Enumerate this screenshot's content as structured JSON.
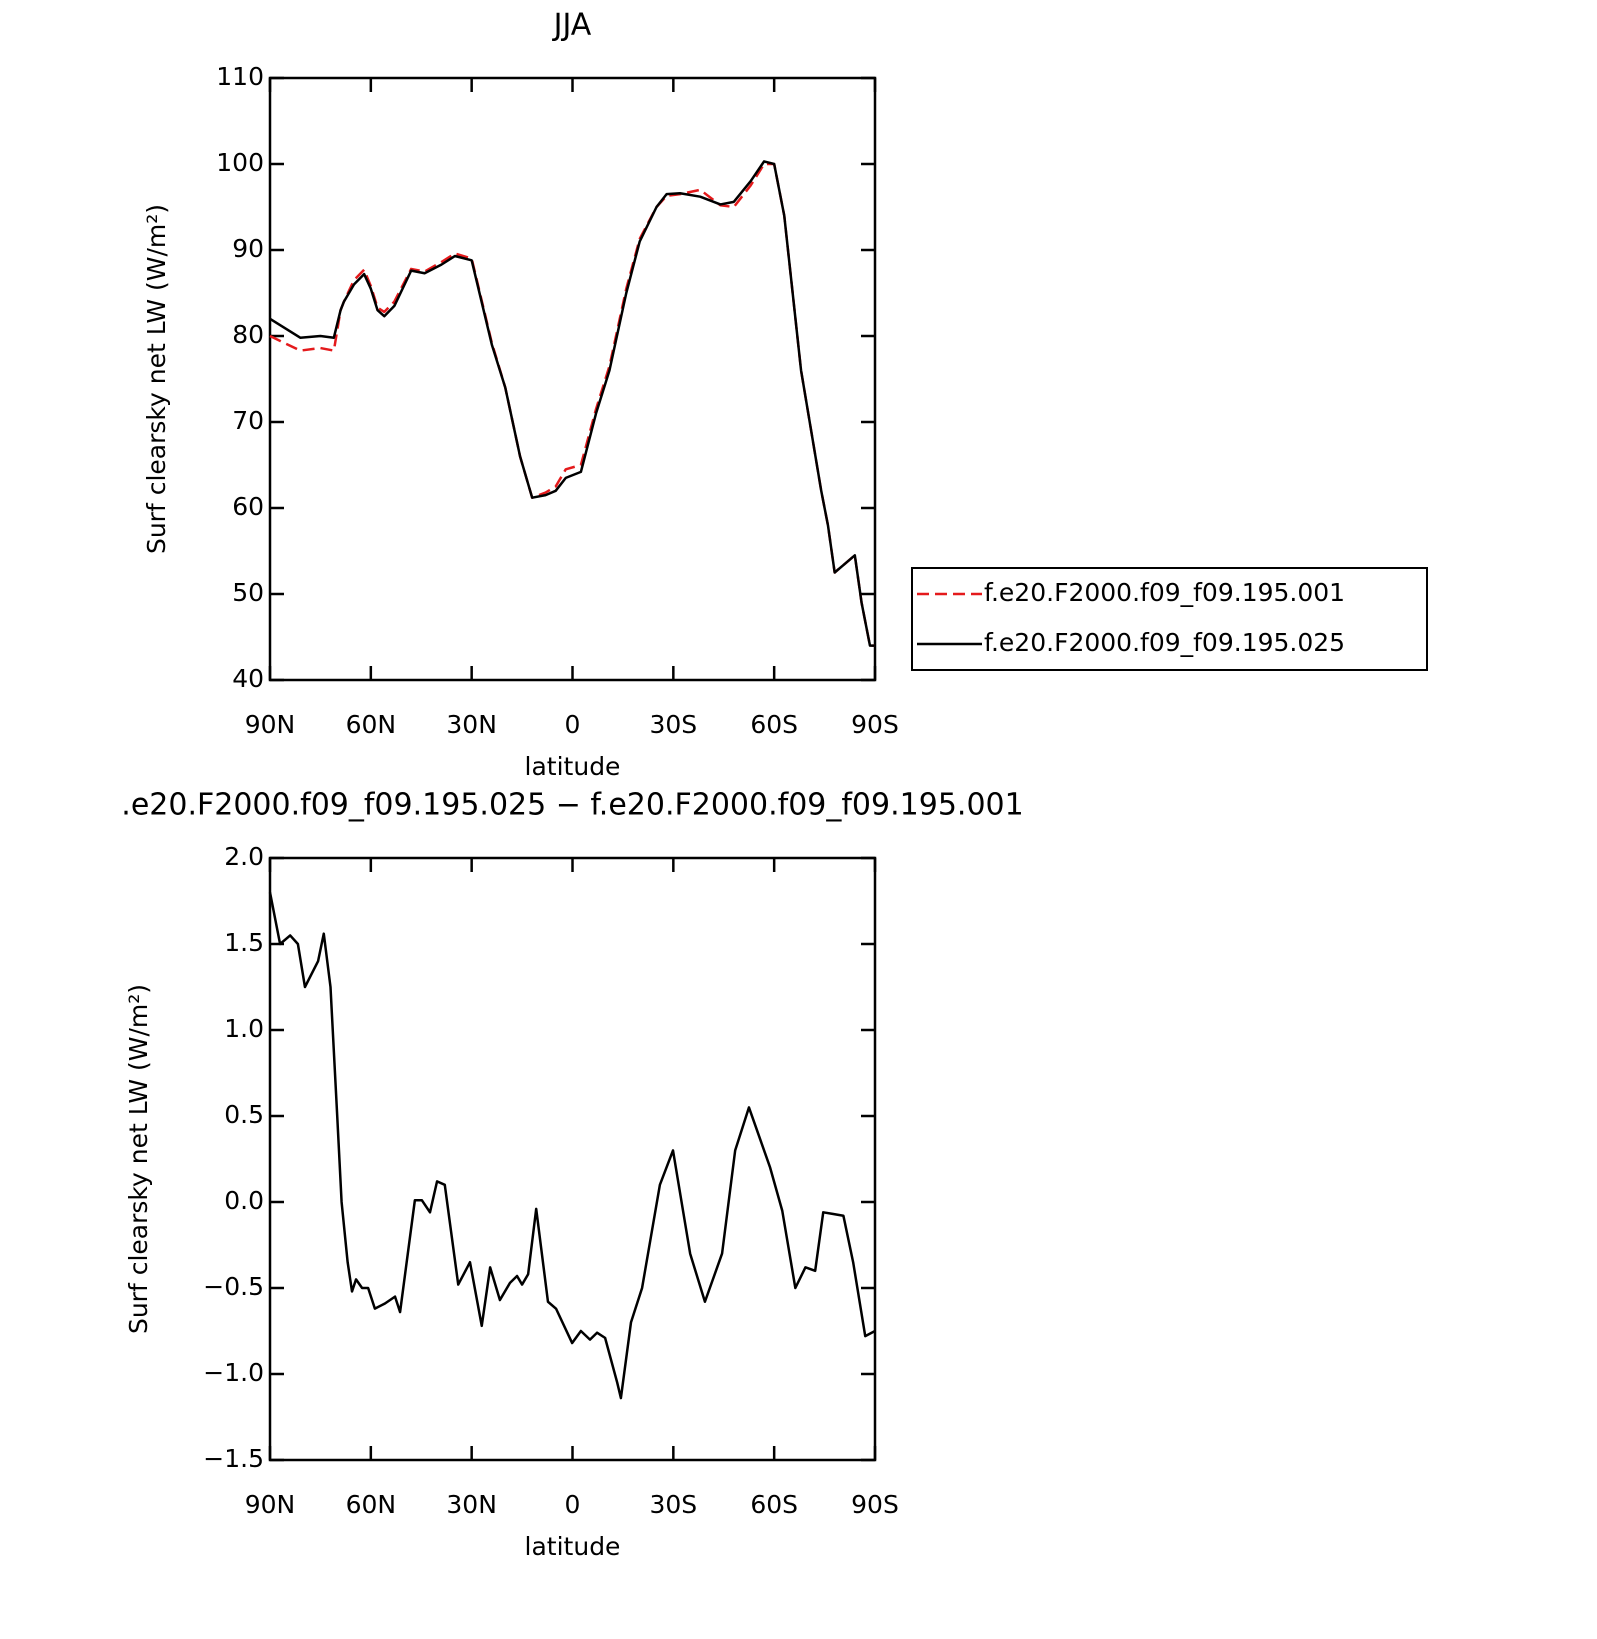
{
  "chart_data": [
    {
      "type": "line",
      "title": "JJA",
      "x_label": "latitude",
      "y_label": "Surf clearsky net LW (W/m²)",
      "x": [
        90,
        81,
        75,
        71,
        69,
        68,
        65,
        62,
        60,
        58,
        56,
        53,
        48,
        44,
        39,
        35,
        30,
        24,
        20,
        15.6,
        12,
        8,
        5,
        2,
        -2.5,
        -7,
        -11,
        -16,
        -20,
        -25,
        -28,
        -32,
        -38,
        -44,
        -48,
        -53,
        -57,
        -60,
        -63,
        -68,
        -71,
        -74,
        -76,
        -78,
        -81,
        -84,
        -86,
        -88.5,
        -90
      ],
      "series": [
        {
          "name": "f.e20.F2000.f09_f09.195.001",
          "color": "#e41a1c",
          "dashed": true,
          "values": [
            80,
            78.3,
            78.6,
            78.3,
            83,
            84,
            86.5,
            87.7,
            85.8,
            83.3,
            82.8,
            84,
            87.8,
            87.5,
            88.6,
            89.6,
            89,
            79.2,
            74,
            66,
            61.2,
            61.8,
            62.5,
            64.5,
            65,
            71.5,
            76.5,
            85.5,
            91.3,
            95,
            96.3,
            96.5,
            97,
            95.2,
            95,
            97.5,
            100,
            100,
            94,
            76,
            69,
            62,
            58,
            52.5,
            53.5,
            54.5,
            49,
            44,
            44
          ]
        },
        {
          "name": "f.e20.F2000.f09_f09.195.025",
          "color": "#000000",
          "dashed": false,
          "values": [
            82,
            79.8,
            80,
            79.8,
            83,
            84,
            86,
            87.2,
            85.5,
            83,
            82.3,
            83.5,
            87.6,
            87.3,
            88.3,
            89.3,
            88.8,
            79,
            74,
            66,
            61.2,
            61.5,
            62,
            63.5,
            64.2,
            71,
            76,
            85,
            91,
            95,
            96.5,
            96.6,
            96.2,
            95.3,
            95.6,
            98,
            100.3,
            100,
            94,
            76,
            69,
            62,
            58,
            52.5,
            53.5,
            54.5,
            49,
            44,
            44
          ]
        }
      ],
      "xlim": [
        90,
        -90
      ],
      "xticks": [
        {
          "value": 90,
          "label": "90N"
        },
        {
          "value": 60,
          "label": "60N"
        },
        {
          "value": 30,
          "label": "30N"
        },
        0,
        {
          "value": -30,
          "label": "30S"
        },
        {
          "value": -60,
          "label": "60S"
        },
        {
          "value": -90,
          "label": "90S"
        }
      ],
      "ylim": [
        40,
        110
      ],
      "yticks": [
        40,
        50,
        60,
        70,
        80,
        90,
        100,
        110
      ],
      "legend": "outside-right"
    },
    {
      "type": "line",
      "title": ".e20.F2000.f09_f09.195.025 − f.e20.F2000.f09_f09.195.001",
      "x_label": "latitude",
      "y_label": "Surf clearsky net LW (W/m²)",
      "x": [
        90,
        87,
        84,
        81.7,
        79.6,
        75.7,
        74,
        72,
        70,
        68.7,
        66.9,
        65.6,
        64.4,
        62.6,
        60.8,
        58.8,
        55.8,
        52.8,
        51.3,
        49,
        46.9,
        44.8,
        42.4,
        40.3,
        38,
        34,
        30.5,
        27,
        24.5,
        21.6,
        18.6,
        16.5,
        15,
        13.2,
        10.8,
        7.3,
        4.9,
        0.1,
        -2.5,
        -5.2,
        -7.3,
        -9.7,
        -13.3,
        -14.4,
        -17.4,
        -20.7,
        -26,
        -29.9,
        -35,
        -39.4,
        -44.5,
        -48.4,
        -52.5,
        -58.8,
        -62.4,
        -66.3,
        -69.3,
        -72.2,
        -74.6,
        -77.6,
        -80.6,
        -83.5,
        -87.1,
        -90
      ],
      "series": [
        {
          "name": null,
          "color": "#000000",
          "dashed": false,
          "values": [
            1.8,
            1.5,
            1.55,
            1.5,
            1.25,
            1.4,
            1.56,
            1.25,
            0.5,
            0,
            -0.35,
            -0.52,
            -0.45,
            -0.5,
            -0.5,
            -0.62,
            -0.59,
            -0.55,
            -0.64,
            -0.3,
            0.01,
            0.01,
            -0.06,
            0.12,
            0.1,
            -0.48,
            -0.35,
            -0.72,
            -0.38,
            -0.57,
            -0.47,
            -0.43,
            -0.48,
            -0.42,
            -0.04,
            -0.58,
            -0.62,
            -0.82,
            -0.75,
            -0.8,
            -0.76,
            -0.79,
            -1.05,
            -1.14,
            -0.7,
            -0.5,
            0.1,
            0.3,
            -0.3,
            -0.58,
            -0.3,
            0.3,
            0.55,
            0.2,
            -0.05,
            -0.5,
            -0.38,
            -0.4,
            -0.06,
            -0.07,
            -0.08,
            -0.35,
            -0.78,
            -0.75
          ]
        }
      ],
      "xlim": [
        90,
        -90
      ],
      "xticks": [
        {
          "value": 90,
          "label": "90N"
        },
        {
          "value": 60,
          "label": "60N"
        },
        {
          "value": 30,
          "label": "30N"
        },
        0,
        {
          "value": -30,
          "label": "30S"
        },
        {
          "value": -60,
          "label": "60S"
        },
        {
          "value": -90,
          "label": "90S"
        }
      ],
      "ylim": [
        -1.5,
        2.0
      ],
      "yticks": [
        {
          "value": -1.5,
          "label": "−1.5"
        },
        {
          "value": -1.0,
          "label": "−1.0"
        },
        {
          "value": -0.5,
          "label": "−0.5"
        },
        {
          "value": 0,
          "label": "0.0"
        },
        0.5,
        {
          "value": 1.0,
          "label": "1.0"
        },
        1.5,
        {
          "value": 2.0,
          "label": "2.0"
        }
      ]
    }
  ]
}
